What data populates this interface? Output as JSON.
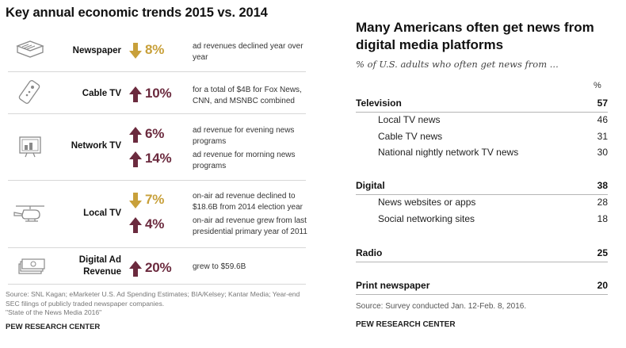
{
  "left": {
    "title": "Key annual economic trends 2015 vs. 2014",
    "rows": [
      {
        "label": "Newspaper",
        "icon": "newspaper-icon",
        "stats": [
          {
            "direction": "down",
            "value": "8%",
            "desc": "ad revenues declined year over year"
          }
        ]
      },
      {
        "label": "Cable TV",
        "icon": "remote-control-icon",
        "stats": [
          {
            "direction": "up",
            "value": "10%",
            "desc": "for a total of $4B for Fox News, CNN, and MSNBC combined"
          }
        ]
      },
      {
        "label": "Network TV",
        "icon": "tv-icon",
        "stats": [
          {
            "direction": "up",
            "value": "6%",
            "desc": "ad revenue for evening news programs"
          },
          {
            "direction": "up",
            "value": "14%",
            "desc": "ad revenue for morning news programs"
          }
        ]
      },
      {
        "label": "Local TV",
        "icon": "helicopter-icon",
        "stats": [
          {
            "direction": "down",
            "value": "7%",
            "desc": "on-air ad revenue declined to $18.6B from 2014 election year"
          },
          {
            "direction": "up",
            "value": "4%",
            "desc": "on-air ad revenue grew from last presidential primary year of 2011"
          }
        ]
      },
      {
        "label_line1": "Digital Ad",
        "label_line2": "Revenue",
        "icon": "money-icon",
        "stats": [
          {
            "direction": "up",
            "value": "20%",
            "desc": "grew to $59.6B"
          }
        ]
      }
    ],
    "source": "Source: SNL Kagan; eMarketer U.S. Ad Spending Estimates; BIA/Kelsey; Kantar Media; Year-end SEC filings of publicly traded newspaper companies.",
    "source_line2": "\"State of the News Media 2016\"",
    "footer": "PEW RESEARCH CENTER",
    "colors": {
      "up": "#6b2a3e",
      "down": "#c8a03a"
    }
  },
  "right": {
    "title": "Many Americans often get news from digital media platforms",
    "subtitle": "% of U.S. adults who often get news from ...",
    "pct_header": "%",
    "rows": [
      {
        "kind": "cat",
        "label": "Television",
        "value": "57"
      },
      {
        "kind": "sub",
        "label": "Local TV news",
        "value": "46"
      },
      {
        "kind": "sub",
        "label": "Cable TV news",
        "value": "31"
      },
      {
        "kind": "sub",
        "label": "National nightly network TV news",
        "value": "30"
      },
      {
        "kind": "cat",
        "label": "Digital",
        "value": "38"
      },
      {
        "kind": "sub",
        "label": "News websites or apps",
        "value": "28"
      },
      {
        "kind": "sub",
        "label": "Social networking sites",
        "value": "18"
      },
      {
        "kind": "cat",
        "label": "Radio",
        "value": "25"
      },
      {
        "kind": "cat",
        "label": "Print newspaper",
        "value": "20"
      }
    ],
    "source": "Source: Survey conducted Jan. 12-Feb. 8, 2016.",
    "footer": "PEW RESEARCH CENTER"
  }
}
